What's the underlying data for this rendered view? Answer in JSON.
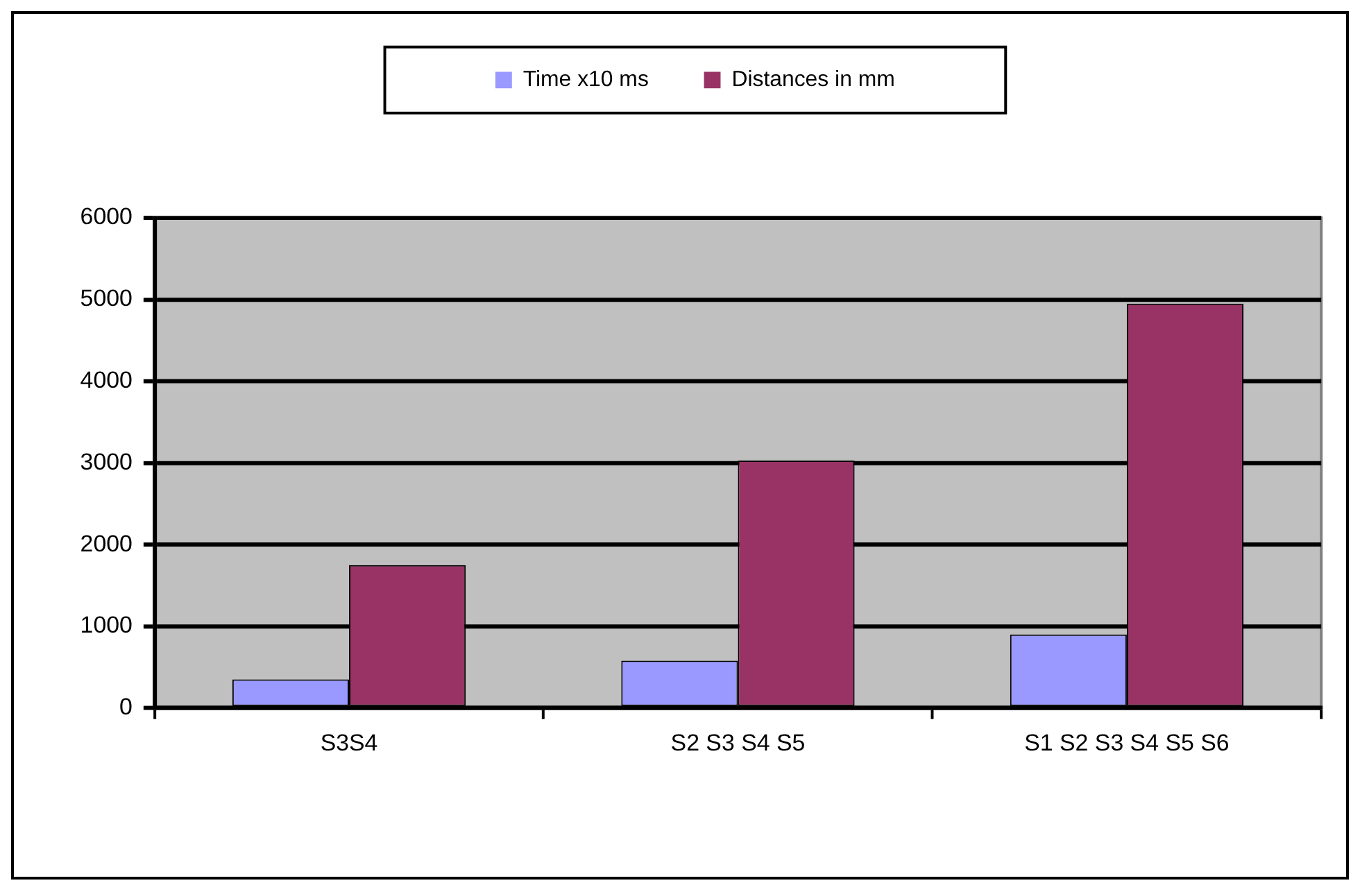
{
  "chart_data": {
    "type": "bar",
    "categories": [
      "S3S4",
      "S2 S3 S4 S5",
      "S1 S2 S3 S4 S5 S6"
    ],
    "series": [
      {
        "name": "Time x10 ms",
        "color": "#9999ff",
        "values": [
          350,
          580,
          900
        ]
      },
      {
        "name": "Distances in mm",
        "color": "#993366",
        "values": [
          1750,
          3030,
          4950
        ]
      }
    ],
    "ylim": [
      0,
      6000
    ],
    "yticks": [
      0,
      1000,
      2000,
      3000,
      4000,
      5000,
      6000
    ],
    "grid": "y",
    "legend": "top"
  }
}
